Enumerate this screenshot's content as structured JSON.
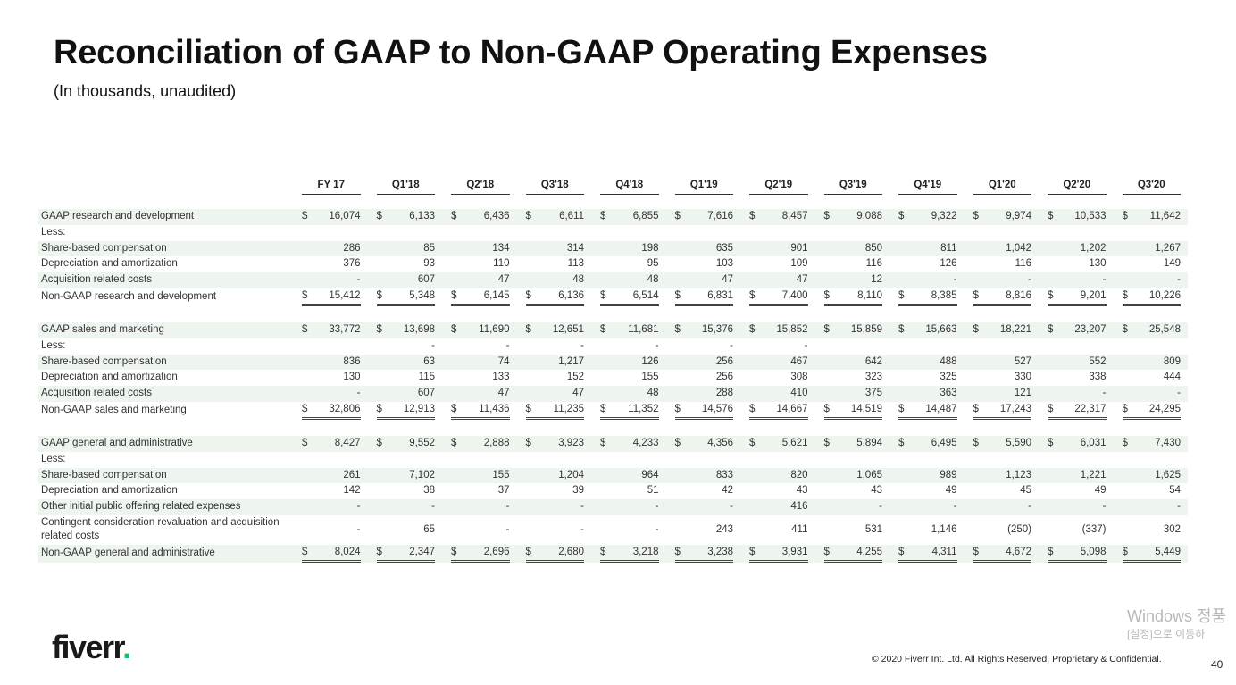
{
  "title": "Reconciliation of GAAP to Non-GAAP Operating Expenses",
  "subtitle": "(In thousands, unaudited)",
  "columns": [
    "FY 17",
    "Q1'18",
    "Q2'18",
    "Q3'18",
    "Q4'18",
    "Q1'19",
    "Q2'19",
    "Q3'19",
    "Q4'19",
    "Q1'20",
    "Q2'20",
    "Q3'20"
  ],
  "rows": [
    {
      "label": "GAAP research and development",
      "type": "gaap",
      "shaded": true,
      "currency": "$",
      "values": [
        "16,074",
        "6,133",
        "6,436",
        "6,611",
        "6,855",
        "7,616",
        "8,457",
        "9,088",
        "9,322",
        "9,974",
        "10,533",
        "11,642"
      ]
    },
    {
      "label": "Less:",
      "type": "less",
      "shaded": false,
      "currency": "",
      "values": [
        "",
        "",
        "",
        "",
        "",
        "",
        "",
        "",
        "",
        "",
        "",
        ""
      ]
    },
    {
      "label": "Share-based compensation",
      "type": "item",
      "shaded": true,
      "currency": "",
      "values": [
        "286",
        "85",
        "134",
        "314",
        "198",
        "635",
        "901",
        "850",
        "811",
        "1,042",
        "1,202",
        "1,267"
      ]
    },
    {
      "label": "Depreciation and amortization",
      "type": "item",
      "shaded": false,
      "currency": "",
      "values": [
        "376",
        "93",
        "110",
        "113",
        "95",
        "103",
        "109",
        "116",
        "126",
        "116",
        "130",
        "149"
      ]
    },
    {
      "label": "Acquisition related costs",
      "type": "item",
      "shaded": true,
      "currency": "",
      "values": [
        "-",
        "607",
        "47",
        "48",
        "48",
        "47",
        "47",
        "12",
        "-",
        "-",
        "-",
        "-"
      ]
    },
    {
      "label": "Non-GAAP research and development",
      "type": "total",
      "shaded": false,
      "currency": "$",
      "values": [
        "15,412",
        "5,348",
        "6,145",
        "6,136",
        "6,514",
        "6,831",
        "7,400",
        "8,110",
        "8,385",
        "8,816",
        "9,201",
        "10,226"
      ]
    },
    {
      "label": "GAAP sales and marketing",
      "type": "gaap",
      "shaded": true,
      "currency": "$",
      "values": [
        "33,772",
        "13,698",
        "11,690",
        "12,651",
        "11,681",
        "15,376",
        "15,852",
        "15,859",
        "15,663",
        "18,221",
        "23,207",
        "25,548"
      ]
    },
    {
      "label": "Less:",
      "type": "less",
      "shaded": false,
      "currency": "",
      "values": [
        "",
        "-",
        "-",
        "-",
        "-",
        "-",
        "-",
        "",
        "",
        "",
        "",
        ""
      ]
    },
    {
      "label": "Share-based compensation",
      "type": "item",
      "shaded": true,
      "currency": "",
      "values": [
        "836",
        "63",
        "74",
        "1,217",
        "126",
        "256",
        "467",
        "642",
        "488",
        "527",
        "552",
        "809"
      ]
    },
    {
      "label": "Depreciation and amortization",
      "type": "item",
      "shaded": false,
      "currency": "",
      "values": [
        "130",
        "115",
        "133",
        "152",
        "155",
        "256",
        "308",
        "323",
        "325",
        "330",
        "338",
        "444"
      ]
    },
    {
      "label": "Acquisition related costs",
      "type": "item",
      "shaded": true,
      "currency": "",
      "values": [
        "-",
        "607",
        "47",
        "47",
        "48",
        "288",
        "410",
        "375",
        "363",
        "121",
        "-",
        "-"
      ]
    },
    {
      "label": "Non-GAAP sales and marketing",
      "type": "total",
      "shaded": false,
      "currency": "$",
      "values": [
        "32,806",
        "12,913",
        "11,436",
        "11,235",
        "11,352",
        "14,576",
        "14,667",
        "14,519",
        "14,487",
        "17,243",
        "22,317",
        "24,295"
      ]
    },
    {
      "label": "GAAP general and administrative",
      "type": "gaap",
      "shaded": true,
      "currency": "$",
      "values": [
        "8,427",
        "9,552",
        "2,888",
        "3,923",
        "4,233",
        "4,356",
        "5,621",
        "5,894",
        "6,495",
        "5,590",
        "6,031",
        "7,430"
      ]
    },
    {
      "label": "Less:",
      "type": "less",
      "shaded": false,
      "currency": "",
      "values": [
        "",
        "",
        "",
        "",
        "",
        "",
        "",
        "",
        "",
        "",
        "",
        ""
      ]
    },
    {
      "label": "Share-based compensation",
      "type": "item",
      "shaded": true,
      "currency": "",
      "values": [
        "261",
        "7,102",
        "155",
        "1,204",
        "964",
        "833",
        "820",
        "1,065",
        "989",
        "1,123",
        "1,221",
        "1,625"
      ]
    },
    {
      "label": "Depreciation and amortization",
      "type": "item",
      "shaded": false,
      "currency": "",
      "values": [
        "142",
        "38",
        "37",
        "39",
        "51",
        "42",
        "43",
        "43",
        "49",
        "45",
        "49",
        "54"
      ]
    },
    {
      "label": "Other initial public offering related expenses",
      "type": "item",
      "shaded": true,
      "currency": "",
      "values": [
        "-",
        "-",
        "-",
        "-",
        "-",
        "-",
        "416",
        "-",
        "-",
        "-",
        "-",
        "-"
      ]
    },
    {
      "label": "Contingent consideration revaluation and acquisition related costs",
      "type": "item2",
      "shaded": false,
      "currency": "",
      "values": [
        "-",
        "65",
        "-",
        "-",
        "-",
        "243",
        "411",
        "531",
        "1,146",
        "(250)",
        "(337)",
        "302"
      ]
    },
    {
      "label": "Non-GAAP general and administrative",
      "type": "total",
      "shaded": true,
      "currency": "$",
      "values": [
        "8,024",
        "2,347",
        "2,696",
        "2,680",
        "3,218",
        "3,238",
        "3,931",
        "4,255",
        "4,311",
        "4,672",
        "5,098",
        "5,449"
      ]
    }
  ],
  "logo": {
    "text": "fiverr",
    "dot": ".",
    "brand_color": "#1dbf73"
  },
  "footer": "© 2020 Fiverr Int. Ltd. All Rights Reserved. Proprietary & Confidential.",
  "page_number": "40",
  "watermark": {
    "line1": "Windows 정품",
    "line2": "[설정]으로 이동하"
  }
}
